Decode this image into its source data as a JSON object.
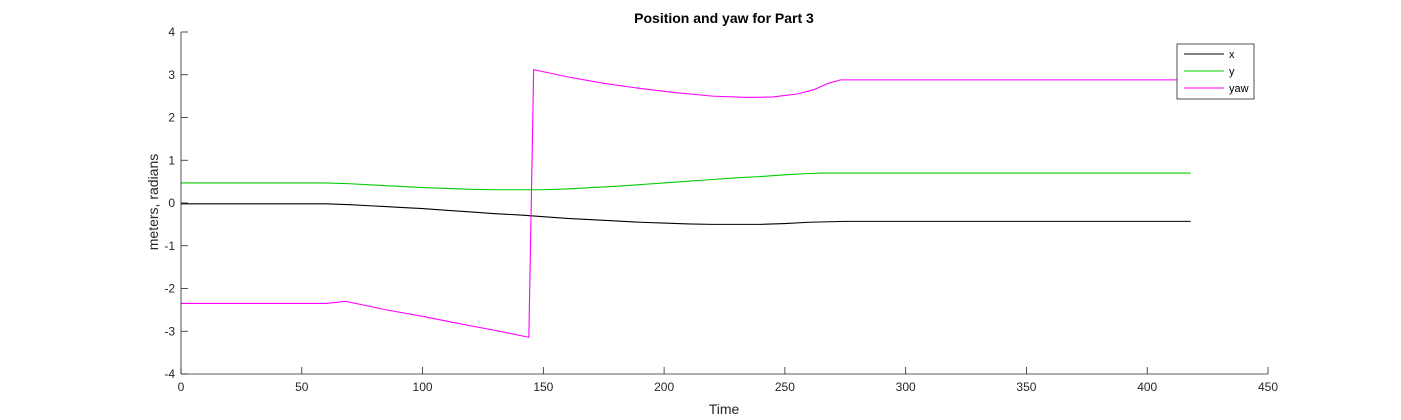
{
  "chart_data": {
    "type": "line",
    "title": "Position and yaw for Part 3",
    "xlabel": "Time",
    "ylabel": "meters, radians",
    "xlim": [
      0,
      450
    ],
    "ylim": [
      -4,
      4
    ],
    "xticks": [
      0,
      50,
      100,
      150,
      200,
      250,
      300,
      350,
      400,
      450
    ],
    "yticks": [
      -4,
      -3,
      -2,
      -1,
      0,
      1,
      2,
      3,
      4
    ],
    "grid": false,
    "legend_position": "top-right",
    "series": [
      {
        "name": "x",
        "color": "#000000",
        "points": [
          [
            0,
            -0.02
          ],
          [
            40,
            -0.02
          ],
          [
            60,
            -0.02
          ],
          [
            70,
            -0.04
          ],
          [
            80,
            -0.07
          ],
          [
            90,
            -0.1
          ],
          [
            100,
            -0.13
          ],
          [
            110,
            -0.17
          ],
          [
            120,
            -0.21
          ],
          [
            130,
            -0.25
          ],
          [
            140,
            -0.28
          ],
          [
            150,
            -0.32
          ],
          [
            160,
            -0.36
          ],
          [
            170,
            -0.39
          ],
          [
            180,
            -0.42
          ],
          [
            190,
            -0.45
          ],
          [
            200,
            -0.47
          ],
          [
            210,
            -0.49
          ],
          [
            220,
            -0.5
          ],
          [
            230,
            -0.5
          ],
          [
            240,
            -0.5
          ],
          [
            250,
            -0.48
          ],
          [
            260,
            -0.45
          ],
          [
            275,
            -0.43
          ],
          [
            300,
            -0.43
          ],
          [
            350,
            -0.43
          ],
          [
            400,
            -0.43
          ],
          [
            418,
            -0.43
          ]
        ]
      },
      {
        "name": "y",
        "color": "#00cc00",
        "points": [
          [
            0,
            0.47
          ],
          [
            40,
            0.47
          ],
          [
            60,
            0.47
          ],
          [
            70,
            0.45
          ],
          [
            80,
            0.42
          ],
          [
            90,
            0.39
          ],
          [
            100,
            0.36
          ],
          [
            110,
            0.34
          ],
          [
            120,
            0.32
          ],
          [
            130,
            0.31
          ],
          [
            140,
            0.31
          ],
          [
            150,
            0.31
          ],
          [
            160,
            0.33
          ],
          [
            170,
            0.36
          ],
          [
            180,
            0.39
          ],
          [
            190,
            0.43
          ],
          [
            200,
            0.47
          ],
          [
            210,
            0.51
          ],
          [
            220,
            0.55
          ],
          [
            230,
            0.59
          ],
          [
            240,
            0.62
          ],
          [
            250,
            0.66
          ],
          [
            260,
            0.69
          ],
          [
            265,
            0.7
          ],
          [
            275,
            0.7
          ],
          [
            300,
            0.7
          ],
          [
            350,
            0.7
          ],
          [
            400,
            0.7
          ],
          [
            418,
            0.7
          ]
        ]
      },
      {
        "name": "yaw",
        "color": "#ff00ff",
        "points": [
          [
            0,
            -2.35
          ],
          [
            30,
            -2.35
          ],
          [
            60,
            -2.35
          ],
          [
            65,
            -2.32
          ],
          [
            68,
            -2.3
          ],
          [
            75,
            -2.38
          ],
          [
            85,
            -2.5
          ],
          [
            100,
            -2.65
          ],
          [
            115,
            -2.82
          ],
          [
            130,
            -2.98
          ],
          [
            144,
            -3.14
          ],
          [
            146,
            3.12
          ],
          [
            160,
            2.95
          ],
          [
            175,
            2.8
          ],
          [
            190,
            2.68
          ],
          [
            205,
            2.58
          ],
          [
            220,
            2.5
          ],
          [
            235,
            2.47
          ],
          [
            245,
            2.48
          ],
          [
            255,
            2.55
          ],
          [
            262,
            2.65
          ],
          [
            268,
            2.8
          ],
          [
            273,
            2.88
          ],
          [
            280,
            2.88
          ],
          [
            300,
            2.88
          ],
          [
            350,
            2.88
          ],
          [
            400,
            2.88
          ],
          [
            418,
            2.88
          ]
        ]
      }
    ]
  }
}
